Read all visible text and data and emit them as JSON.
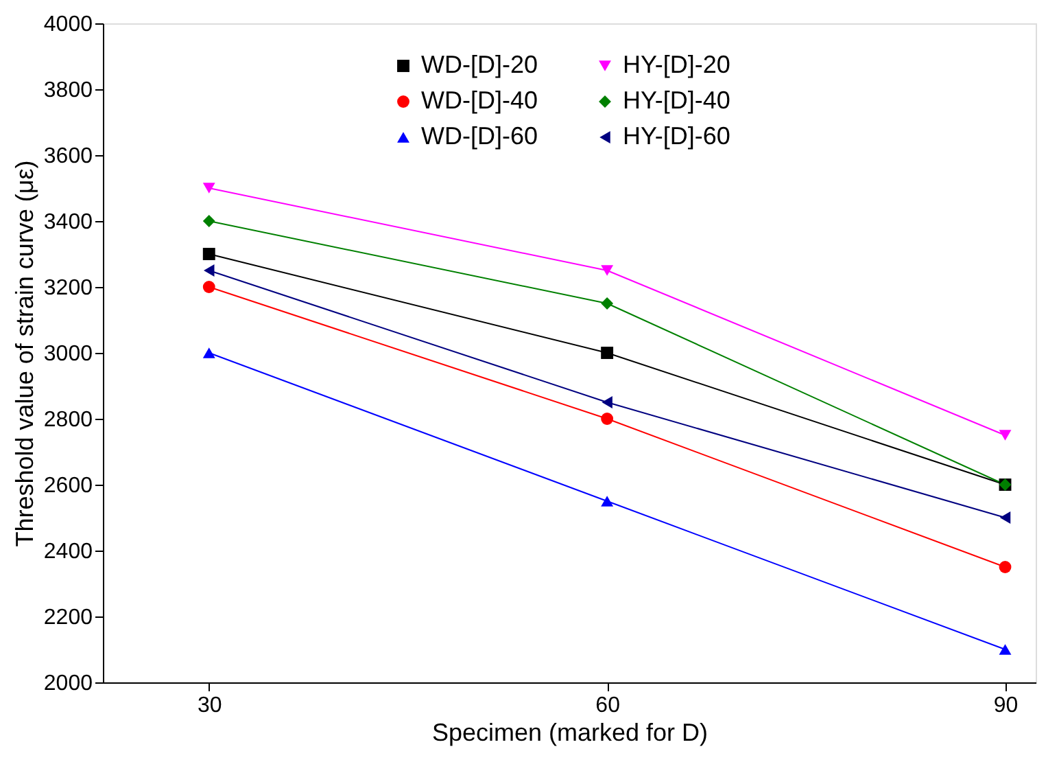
{
  "chart_data": {
    "type": "line",
    "xlabel": "Specimen (marked for D)",
    "ylabel": "Threshold value of strain curve (με)",
    "x": [
      30,
      60,
      90
    ],
    "xlim": [
      22,
      92.3
    ],
    "xticks": [
      30,
      60,
      90
    ],
    "ylim": [
      2000,
      4000
    ],
    "yticks": [
      2000,
      2200,
      2400,
      2600,
      2800,
      3000,
      3200,
      3400,
      3600,
      3800,
      4000
    ],
    "grid": false,
    "legend": "top",
    "line_style": "solid",
    "series": [
      {
        "name": "WD-[D]-20",
        "color": "#000000",
        "marker": "square",
        "values": [
          3300,
          3000,
          2600
        ]
      },
      {
        "name": "WD-[D]-40",
        "color": "#ff0000",
        "marker": "circle",
        "values": [
          3200,
          2800,
          2350
        ]
      },
      {
        "name": "WD-[D]-60",
        "color": "#0000ff",
        "marker": "triangle",
        "values": [
          3000,
          2550,
          2100
        ]
      },
      {
        "name": "HY-[D]-20",
        "color": "#ff00ff",
        "marker": "triangle-down",
        "values": [
          3500,
          3250,
          2750
        ]
      },
      {
        "name": "HY-[D]-40",
        "color": "#008000",
        "marker": "diamond",
        "values": [
          3400,
          3150,
          2600
        ]
      },
      {
        "name": "HY-[D]-60",
        "color": "#000080",
        "marker": "triangle-left",
        "values": [
          3250,
          2850,
          2500
        ]
      }
    ]
  }
}
